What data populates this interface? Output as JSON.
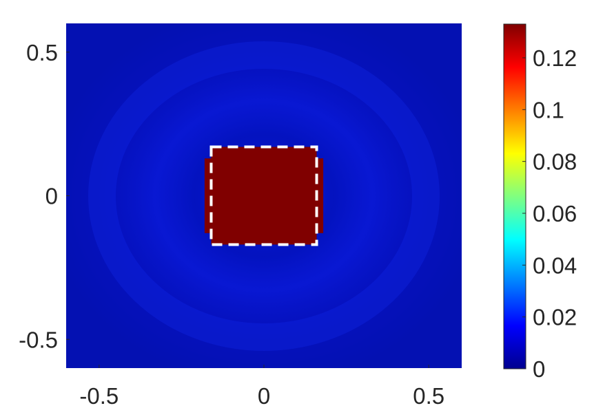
{
  "chart_data": {
    "type": "heatmap",
    "title": "",
    "xlabel": "",
    "ylabel": "",
    "xlim": [
      -0.6,
      0.6
    ],
    "ylim": [
      -0.6,
      0.6
    ],
    "x_ticks": [
      {
        "value": -0.5,
        "label": "-0.5"
      },
      {
        "value": 0,
        "label": "0"
      },
      {
        "value": 0.5,
        "label": "0.5"
      }
    ],
    "y_ticks": [
      {
        "value": 0.5,
        "label": "0.5"
      },
      {
        "value": 0,
        "label": "0"
      },
      {
        "value": -0.5,
        "label": "-0.5"
      }
    ],
    "colorbar": {
      "colormap": "jet",
      "range": [
        0,
        0.133
      ],
      "ticks": [
        {
          "value": 0,
          "label": "0"
        },
        {
          "value": 0.02,
          "label": "0.02"
        },
        {
          "value": 0.04,
          "label": "0.04"
        },
        {
          "value": 0.06,
          "label": "0.06"
        },
        {
          "value": 0.08,
          "label": "0.08"
        },
        {
          "value": 0.1,
          "label": "0.1"
        },
        {
          "value": 0.12,
          "label": "0.12"
        }
      ]
    },
    "field": {
      "background_value": 0.012,
      "inner_high_region": {
        "x": [
          -0.18,
          0.18
        ],
        "y": [
          -0.13,
          0.13
        ],
        "value": 0.133
      },
      "outer_high_region": {
        "x": [
          -0.16,
          0.16
        ],
        "y": [
          -0.17,
          0.17
        ],
        "value": 0.133
      }
    },
    "annotations": [
      {
        "type": "dashed-rectangle",
        "color": "#ffffff",
        "x": [
          -0.16,
          0.16
        ],
        "y": [
          -0.17,
          0.17
        ]
      }
    ]
  }
}
